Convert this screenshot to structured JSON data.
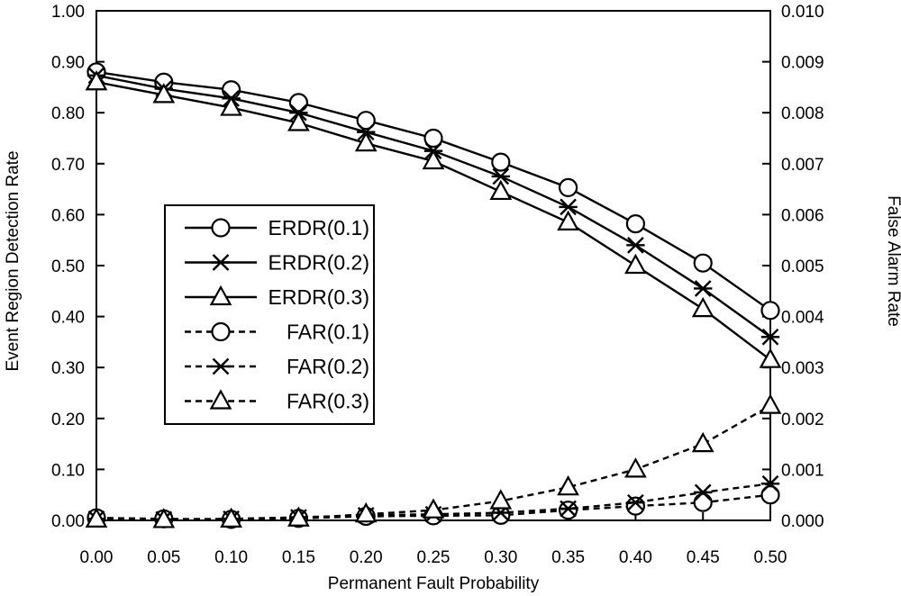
{
  "chart_data": {
    "type": "line",
    "xlabel": "Permanent Fault Probability",
    "ylabel": "Event Region Detection Rate",
    "y2label": "False Alarm Rate",
    "x": [
      0.0,
      0.05,
      0.1,
      0.15,
      0.2,
      0.25,
      0.3,
      0.35,
      0.4,
      0.45,
      0.5
    ],
    "xlim": [
      0.0,
      0.5
    ],
    "ylim": [
      0.0,
      1.0
    ],
    "y2lim": [
      0.0,
      0.01
    ],
    "x_ticks": [
      "0.00",
      "0.05",
      "0.10",
      "0.15",
      "0.20",
      "0.25",
      "0.30",
      "0.35",
      "0.40",
      "0.45",
      "0.50"
    ],
    "y_ticks": [
      "0.00",
      "0.10",
      "0.20",
      "0.30",
      "0.40",
      "0.50",
      "0.60",
      "0.70",
      "0.80",
      "0.90",
      "1.00"
    ],
    "y2_ticks": [
      "0.000",
      "0.001",
      "0.002",
      "0.003",
      "0.004",
      "0.005",
      "0.006",
      "0.007",
      "0.008",
      "0.009",
      "0.010"
    ],
    "grid": false,
    "legend_position": "center-left",
    "series": [
      {
        "name": "ERDR(0.1)",
        "axis": "left",
        "marker": "circle",
        "dash": "solid",
        "values": [
          0.88,
          0.86,
          0.845,
          0.82,
          0.785,
          0.75,
          0.703,
          0.653,
          0.582,
          0.505,
          0.412
        ]
      },
      {
        "name": "ERDR(0.2)",
        "axis": "left",
        "marker": "star",
        "dash": "solid",
        "values": [
          0.873,
          0.847,
          0.828,
          0.8,
          0.762,
          0.725,
          0.675,
          0.615,
          0.54,
          0.455,
          0.36
        ]
      },
      {
        "name": "ERDR(0.3)",
        "axis": "left",
        "marker": "triangle",
        "dash": "solid",
        "values": [
          0.86,
          0.835,
          0.81,
          0.78,
          0.74,
          0.705,
          0.645,
          0.585,
          0.5,
          0.415,
          0.315
        ]
      },
      {
        "name": "FAR(0.1)",
        "axis": "right",
        "marker": "circle",
        "dash": "dashed",
        "values": [
          5e-05,
          3e-05,
          2e-05,
          4e-05,
          8e-05,
          9e-05,
          0.0001,
          0.0002,
          0.00028,
          0.00035,
          0.0005
        ]
      },
      {
        "name": "FAR(0.2)",
        "axis": "right",
        "marker": "star",
        "dash": "dashed",
        "values": [
          3e-05,
          2e-05,
          3e-05,
          6e-05,
          0.0001,
          0.00012,
          0.00015,
          0.00023,
          0.00035,
          0.00055,
          0.00072
        ]
      },
      {
        "name": "FAR(0.3)",
        "axis": "right",
        "marker": "triangle",
        "dash": "dashed",
        "values": [
          2e-05,
          1e-05,
          2e-05,
          4e-05,
          0.00012,
          0.0002,
          0.00038,
          0.00065,
          0.001,
          0.0015,
          0.00225
        ]
      }
    ]
  }
}
